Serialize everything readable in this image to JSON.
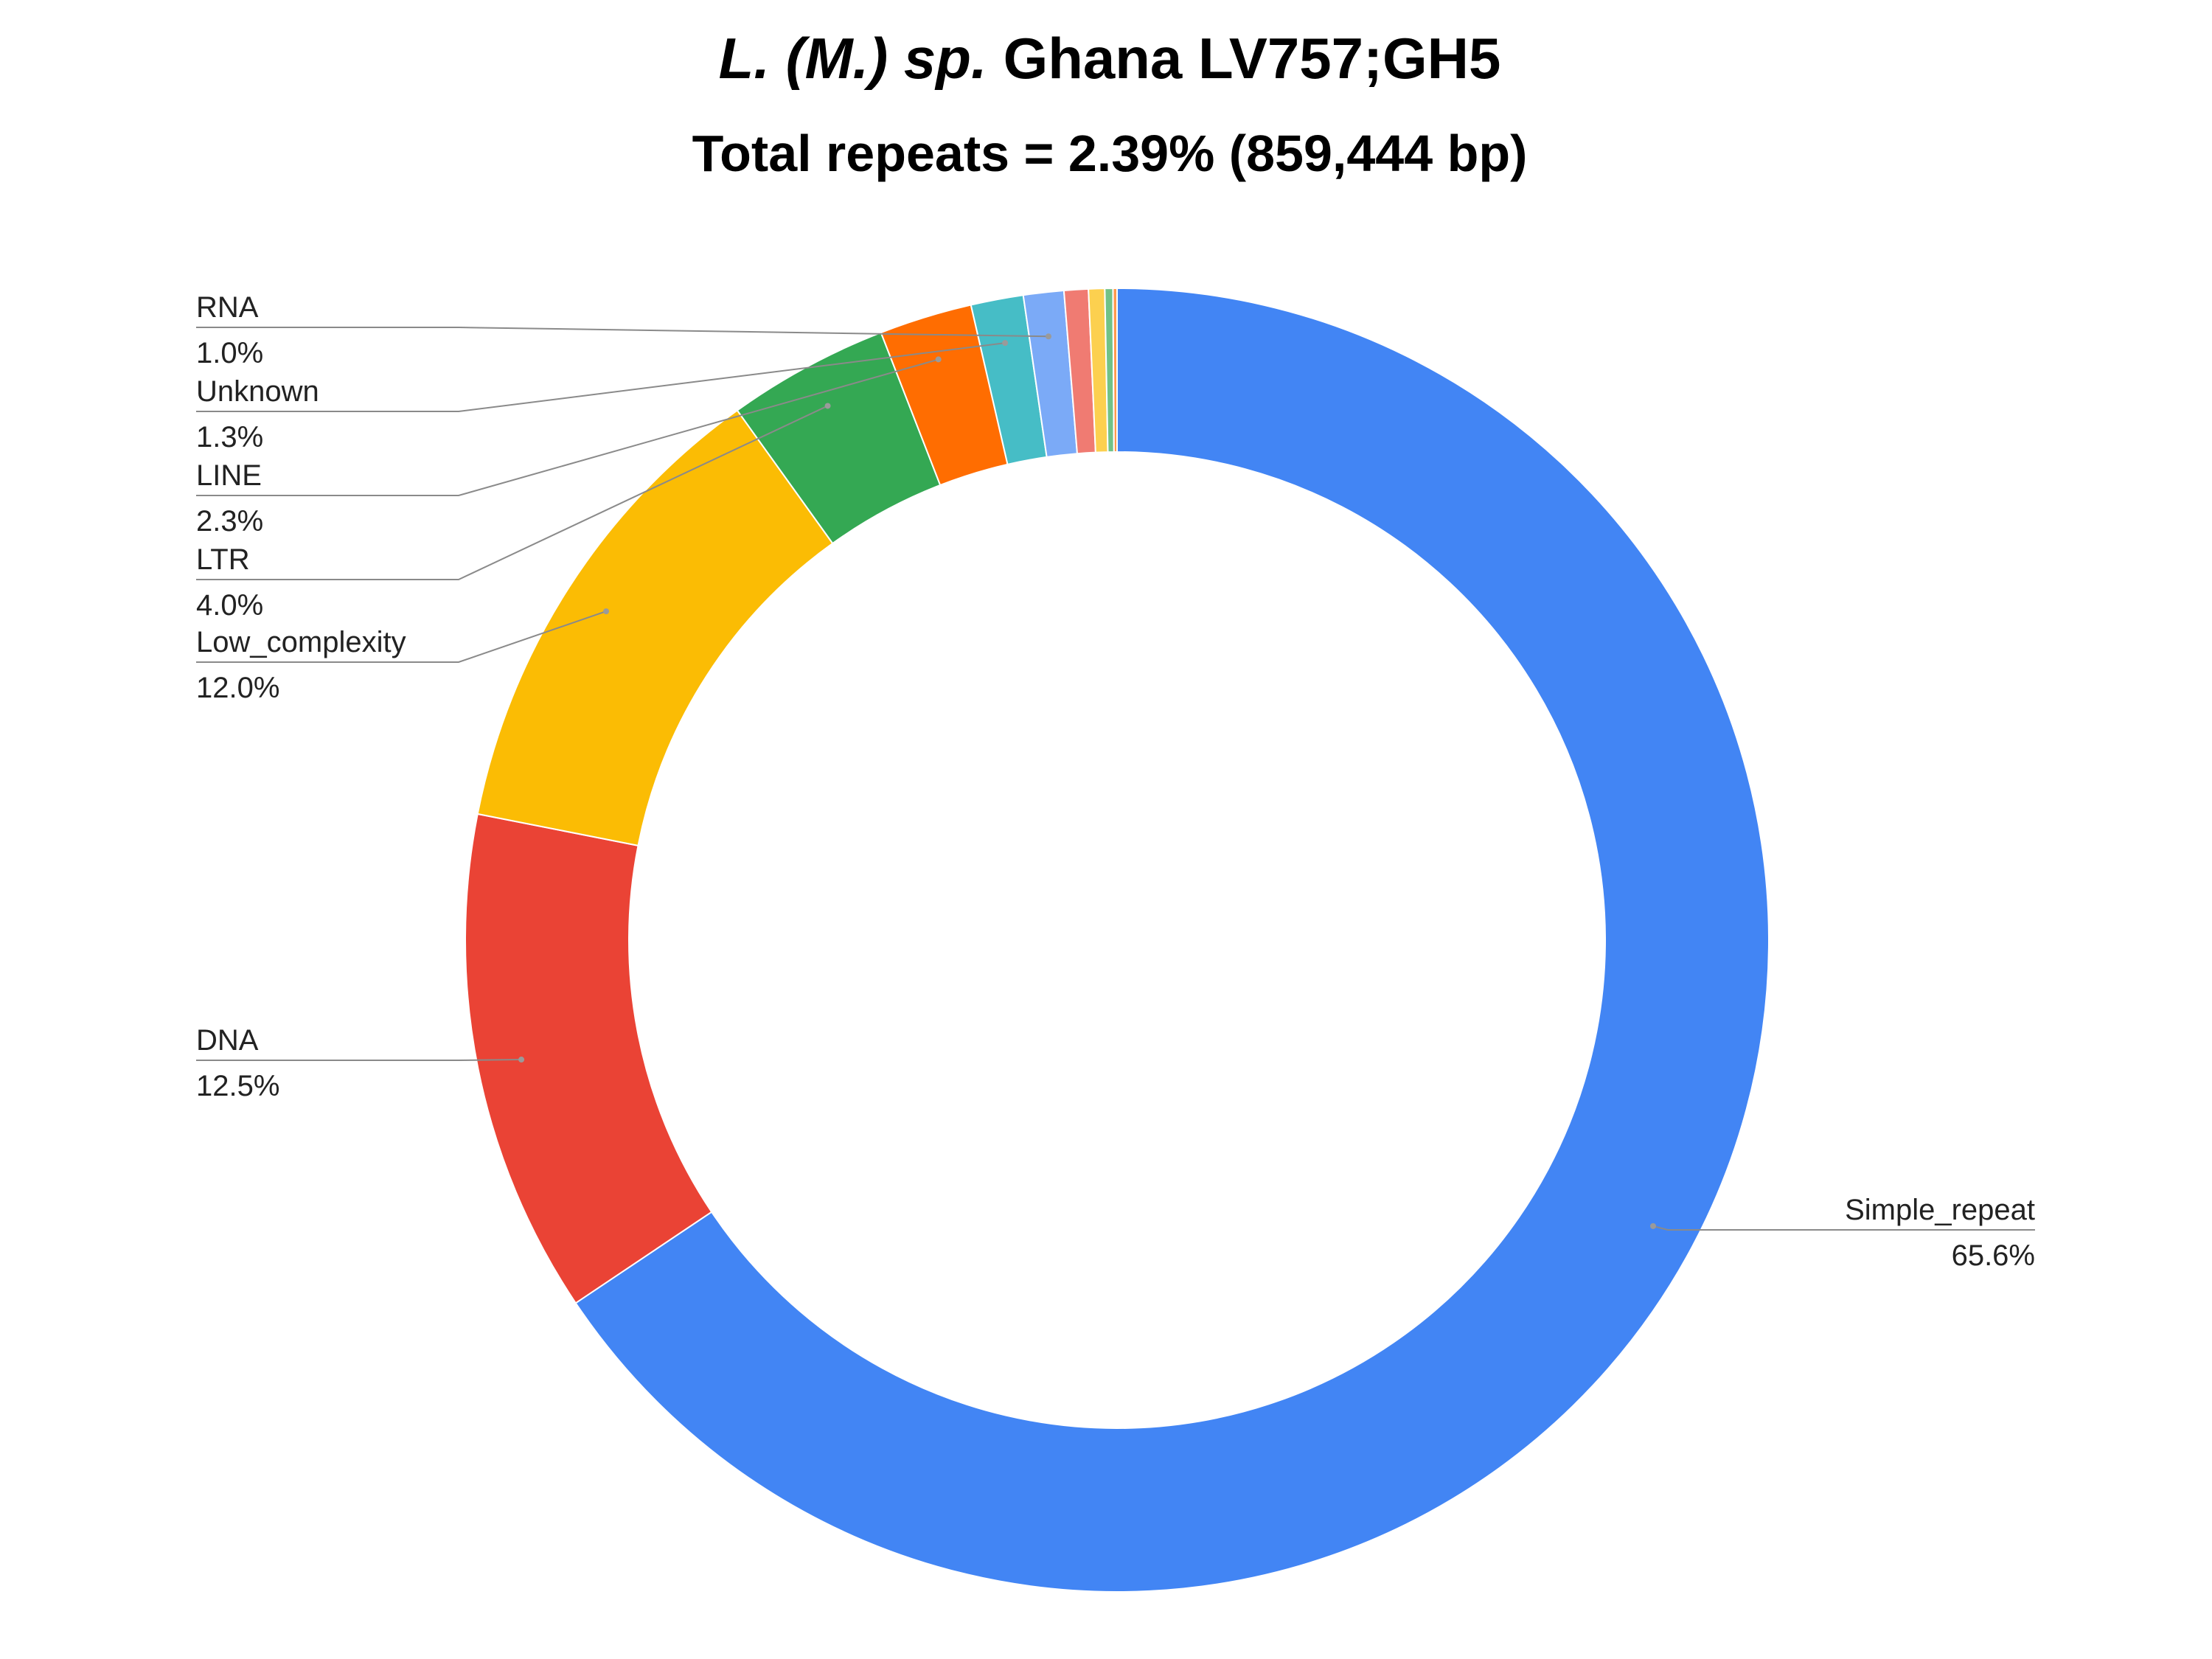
{
  "chart_data": {
    "type": "pie",
    "donut": true,
    "title": {
      "italic_part": "L. (M.) sp.",
      "plain_part": "Ghana LV757;GH5"
    },
    "subtitle": "Total repeats = 2.39% (859,444 bp)",
    "legend": "none",
    "slices": [
      {
        "name": "Simple_repeat",
        "value": 65.6,
        "label": "65.6%",
        "color": "#4285F4"
      },
      {
        "name": "DNA",
        "value": 12.5,
        "label": "12.5%",
        "color": "#EA4335"
      },
      {
        "name": "Low_complexity",
        "value": 12.0,
        "label": "12.0%",
        "color": "#FBBC04"
      },
      {
        "name": "LTR",
        "value": 4.0,
        "label": "4.0%",
        "color": "#34A853"
      },
      {
        "name": "LINE",
        "value": 2.3,
        "label": "2.3%",
        "color": "#FF6D01"
      },
      {
        "name": "Unknown",
        "value": 1.3,
        "label": "1.3%",
        "color": "#46BDC6"
      },
      {
        "name": "RNA",
        "value": 1.0,
        "label": "1.0%",
        "color": "#7BAAF7"
      },
      {
        "name": "",
        "value": 0.6,
        "label": "",
        "color": "#F07B72"
      },
      {
        "name": "",
        "value": 0.4,
        "label": "",
        "color": "#FCD04F"
      },
      {
        "name": "",
        "value": 0.2,
        "label": "",
        "color": "#71C287"
      },
      {
        "name": "",
        "value": 0.1,
        "label": "",
        "color": "#FF994D"
      }
    ]
  }
}
